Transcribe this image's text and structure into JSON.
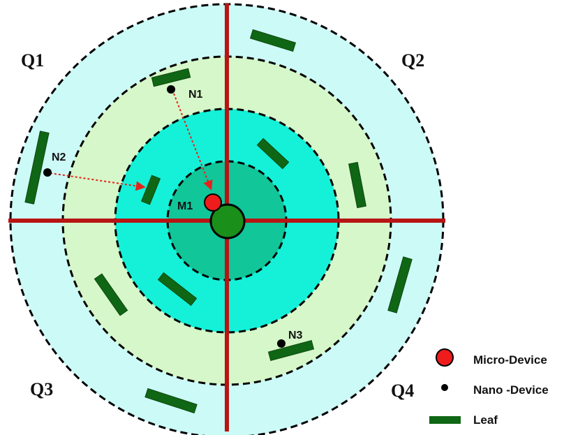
{
  "quadrants": [
    "Q1",
    "Q2",
    "Q3",
    "Q4"
  ],
  "nodes": {
    "m1": "M1",
    "n1": "N1",
    "n2": "N2",
    "n3": "N3"
  },
  "legend": {
    "micro_device": "Micro-Device",
    "nano_device": "Nano -Device",
    "leaf": "Leaf"
  },
  "colors": {
    "outer_ring": "#ccfaf7",
    "middle_ring": "#d6f7c9",
    "inner_ring": "#14f1d8",
    "core": "#11c699",
    "center_node": "#1a8f1a",
    "axis": "#b81414",
    "leaf": "#0f6614",
    "micro_device": "#ee1c1c",
    "nano_device": "#000000",
    "path_arrow": "#e8201a"
  }
}
